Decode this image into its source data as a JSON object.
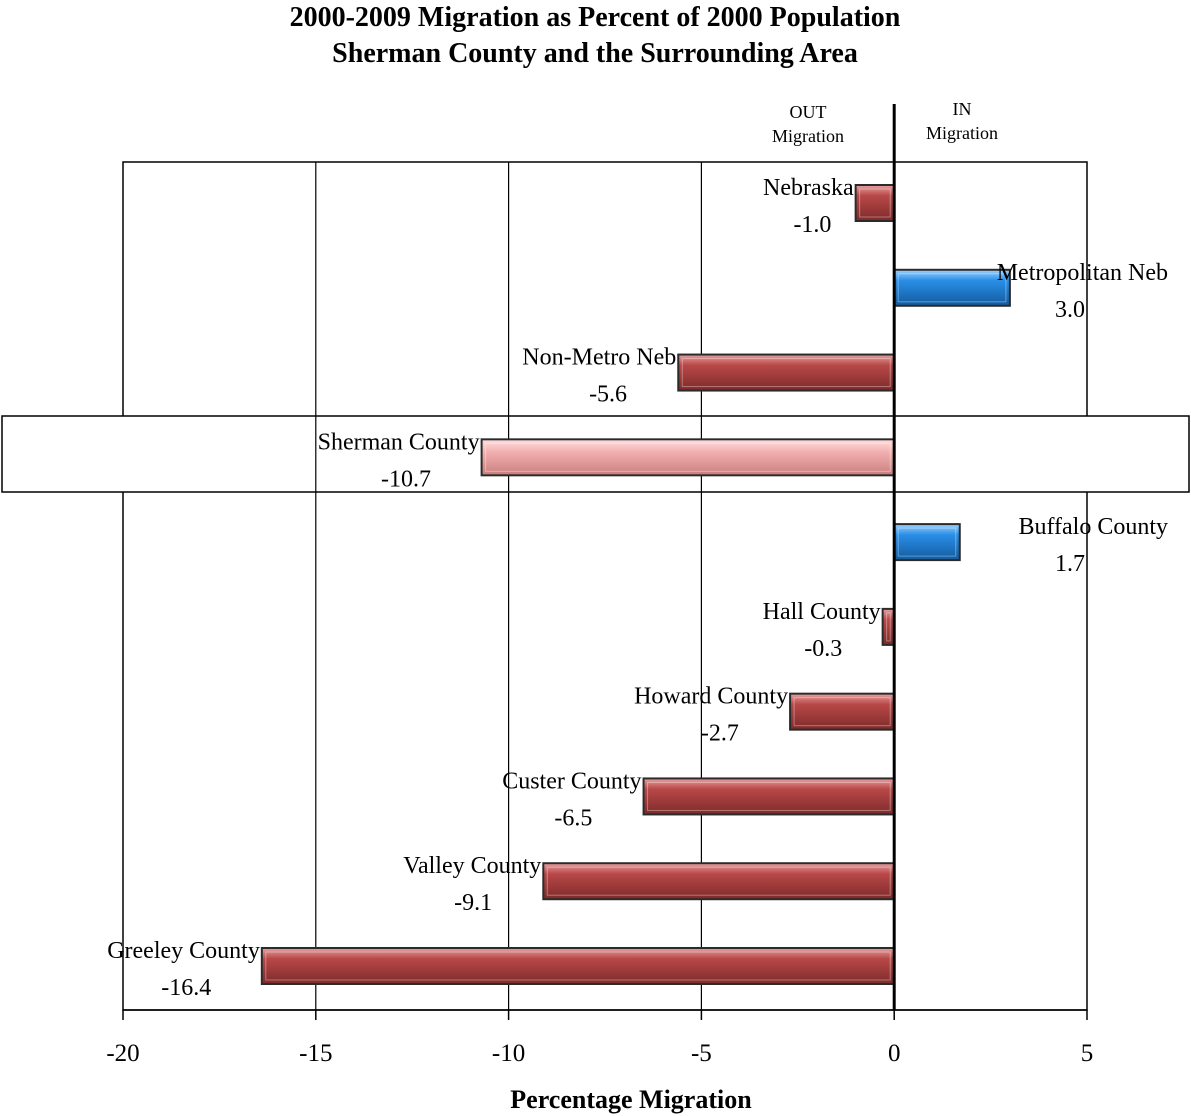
{
  "chart_data": {
    "type": "bar",
    "orientation": "horizontal",
    "title": [
      "2000-2009 Migration  as Percent of 2000 Population",
      "Sherman County and the Surrounding Area"
    ],
    "xlabel": "Percentage Migration",
    "ylabel": "",
    "xlim": [
      -20,
      5
    ],
    "xticks": [
      -20,
      -15,
      -10,
      -5,
      0,
      5
    ],
    "grid": "vertical",
    "direction_labels": {
      "out": [
        "OUT",
        "Migration"
      ],
      "in": [
        "IN",
        "Migration"
      ]
    },
    "categories": [
      "Nebraska",
      "Metropolitan Neb",
      "Non-Metro Neb",
      "Sherman County",
      "Buffalo County",
      "Hall County",
      "Howard County",
      "Custer County",
      "Valley County",
      "Greeley County"
    ],
    "values": [
      -1.0,
      3.0,
      -5.6,
      -10.7,
      1.7,
      -0.3,
      -2.7,
      -6.5,
      -9.1,
      -16.4
    ],
    "value_labels": [
      "-1.0",
      "3.0",
      "-5.6",
      "-10.7",
      "1.7",
      "-0.3",
      "-2.7",
      "-6.5",
      "-9.1",
      "-16.4"
    ],
    "highlight": "Sherman County",
    "colors": {
      "negative": "#a33b3b",
      "positive": "#1f7fd6",
      "highlight": "#f0a8a8",
      "border": "#2b2b2b"
    }
  }
}
